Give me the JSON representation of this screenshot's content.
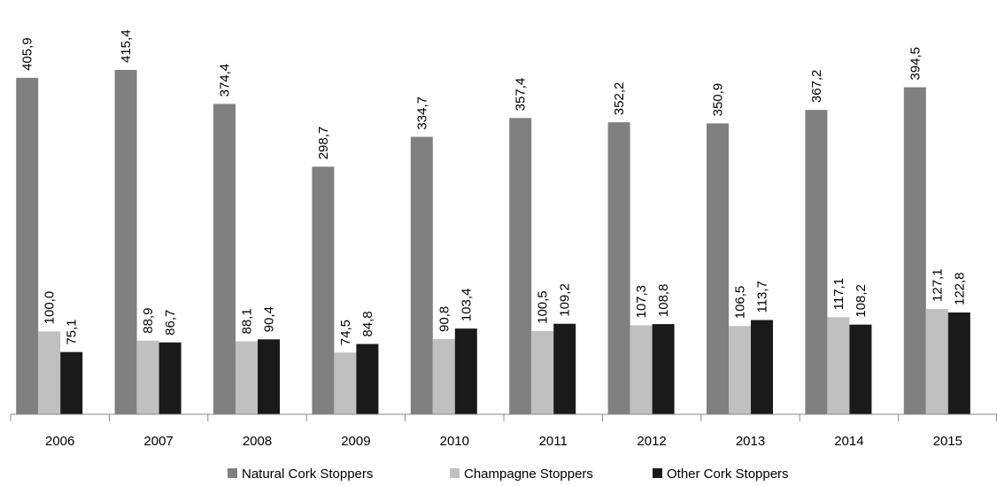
{
  "chart_data": {
    "type": "bar",
    "categories": [
      "2006",
      "2007",
      "2008",
      "2009",
      "2010",
      "2011",
      "2012",
      "2013",
      "2014",
      "2015"
    ],
    "series": [
      {
        "name": "Natural Cork Stoppers",
        "color": "#808080",
        "values": [
          405.9,
          415.4,
          374.4,
          298.7,
          334.7,
          357.4,
          352.2,
          350.9,
          367.2,
          394.5
        ],
        "value_labels": [
          "405,9",
          "415,4",
          "374,4",
          "298,7",
          "334,7",
          "357,4",
          "352,2",
          "350,9",
          "367,2",
          "394,5"
        ]
      },
      {
        "name": "Champagne Stoppers",
        "color": "#c0c0c0",
        "values": [
          100.0,
          88.9,
          88.1,
          74.5,
          90.8,
          100.5,
          107.3,
          106.5,
          117.1,
          127.1
        ],
        "value_labels": [
          "100,0",
          "88,9",
          "88,1",
          "74,5",
          "90,8",
          "100,5",
          "107,3",
          "106,5",
          "117,1",
          "127,1"
        ]
      },
      {
        "name": "Other Cork Stoppers",
        "color": "#1a1a1a",
        "values": [
          75.1,
          86.7,
          90.4,
          84.8,
          103.4,
          109.2,
          108.8,
          113.7,
          108.2,
          122.8
        ],
        "value_labels": [
          "75,1",
          "86,7",
          "90,4",
          "84,8",
          "103,4",
          "109,2",
          "108,8",
          "113,7",
          "108,2",
          "122,8"
        ]
      }
    ],
    "legend": "bottom"
  }
}
